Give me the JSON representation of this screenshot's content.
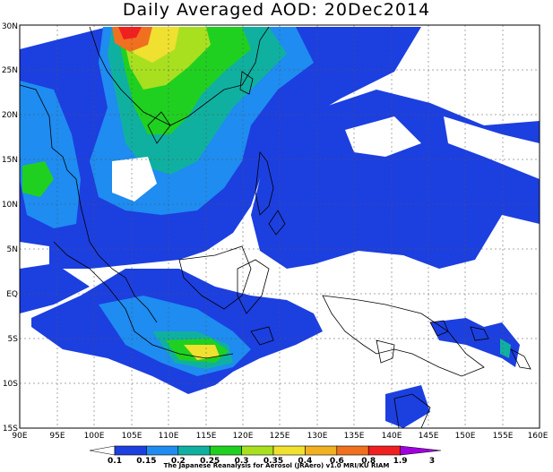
{
  "title": "Daily Averaged AOD: 20Dec2014",
  "credit": "The Japanese Reanalysis for Aerosol (JRAero) v1.0 MRI/KU RIAM",
  "lat_labels": [
    "30N",
    "25N",
    "20N",
    "15N",
    "10N",
    "5N",
    "EQ",
    "5S",
    "10S",
    "15S"
  ],
  "lon_labels": [
    "90E",
    "95E",
    "100E",
    "105E",
    "110E",
    "115E",
    "120E",
    "125E",
    "130E",
    "135E",
    "140E",
    "145E",
    "150E",
    "155E",
    "160E"
  ],
  "colorbar": {
    "labels": [
      "0.1",
      "0.15",
      "0.2",
      "0.25",
      "0.3",
      "0.35",
      "0.4",
      "0.6",
      "0.8",
      "1.9",
      "3"
    ],
    "colors": [
      "#1c3fe0",
      "#1e8cf0",
      "#10b0a0",
      "#20d020",
      "#a8e020",
      "#f0e030",
      "#f0b020",
      "#f07020",
      "#f02020",
      "#a000e0"
    ]
  },
  "legend_palette": {
    "0.10": "#1c3fe0",
    "0.15": "#1e8cf0",
    "0.20": "#10b0a0",
    "0.25": "#20d020",
    "0.30": "#a8e020",
    "0.35": "#f0e030",
    "0.40": "#f0b020",
    "0.60": "#f07020",
    "0.80": "#f02020"
  }
}
